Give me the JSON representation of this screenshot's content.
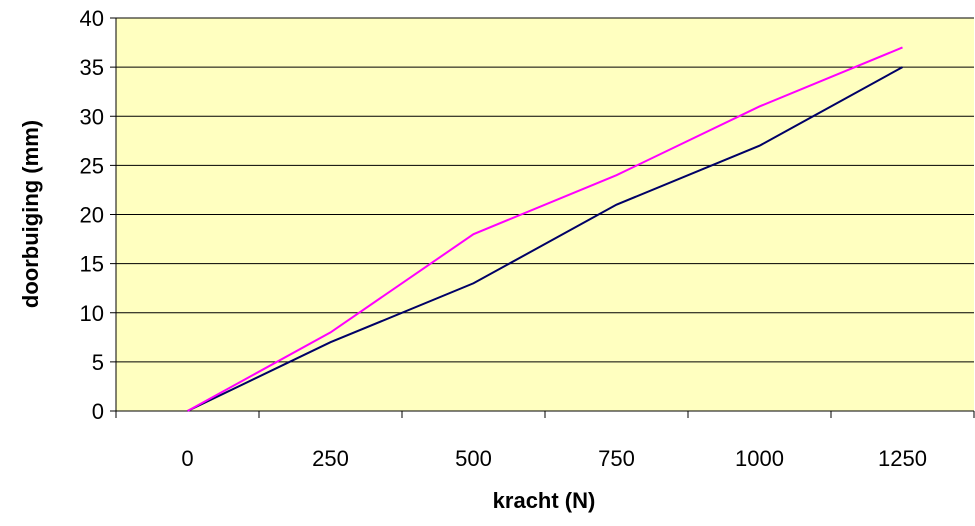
{
  "chart_data": {
    "type": "line",
    "title": "",
    "xlabel": "kracht (N)",
    "ylabel": "doorbuiging (mm)",
    "categories": [
      "0",
      "250",
      "500",
      "750",
      "1000",
      "1250"
    ],
    "x": [
      0,
      250,
      500,
      750,
      1000,
      1250
    ],
    "ylim": [
      0,
      40
    ],
    "yticks": [
      0,
      5,
      10,
      15,
      20,
      25,
      30,
      35,
      40
    ],
    "grid": true,
    "legend": "none",
    "series": [
      {
        "color": "#000066",
        "values": [
          0,
          7,
          13,
          21,
          27,
          35
        ]
      },
      {
        "color": "#ff00ff",
        "values": [
          0,
          8,
          18,
          24,
          31,
          37
        ]
      }
    ],
    "colors": {
      "plot_background": "#ffffc0",
      "gridline": "#000000"
    }
  }
}
